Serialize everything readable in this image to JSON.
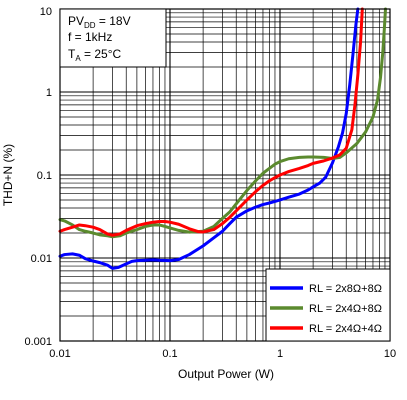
{
  "chart_data": {
    "type": "line",
    "x_scale": "log",
    "y_scale": "log",
    "xlim": [
      0.01,
      10
    ],
    "ylim": [
      0.001,
      10
    ],
    "xlabel": "Output Power (W)",
    "ylabel": "THD+N (%)",
    "x_ticks": [
      {
        "value": 0.01,
        "label": "0.01"
      },
      {
        "value": 0.1,
        "label": "0.1"
      },
      {
        "value": 1,
        "label": "1"
      },
      {
        "value": 10,
        "label": "10"
      }
    ],
    "y_ticks": [
      {
        "value": 0.001,
        "label": "0.001"
      },
      {
        "value": 0.01,
        "label": "0.01"
      },
      {
        "value": 0.1,
        "label": "0.1"
      },
      {
        "value": 1,
        "label": "1"
      },
      {
        "value": 10,
        "label": "10"
      }
    ],
    "grid": true,
    "conditions": {
      "line1": {
        "main": "PV",
        "sub": "DD",
        "rest": " = 18V"
      },
      "line2": {
        "main": "f = 1kHz"
      },
      "line3": {
        "main": "T",
        "sub": "A",
        "rest": " = 25°C"
      }
    },
    "legend_position": "bottom-right",
    "series": [
      {
        "name": "RL = 2x8Ω+8Ω",
        "color": "#0000ff",
        "points": [
          [
            0.01,
            0.0105
          ],
          [
            0.011,
            0.011
          ],
          [
            0.013,
            0.0112
          ],
          [
            0.015,
            0.0108
          ],
          [
            0.017,
            0.0098
          ],
          [
            0.02,
            0.0092
          ],
          [
            0.023,
            0.0088
          ],
          [
            0.027,
            0.0082
          ],
          [
            0.03,
            0.0075
          ],
          [
            0.034,
            0.0077
          ],
          [
            0.04,
            0.0085
          ],
          [
            0.045,
            0.0091
          ],
          [
            0.05,
            0.0093
          ],
          [
            0.06,
            0.0094
          ],
          [
            0.07,
            0.0095
          ],
          [
            0.08,
            0.0094
          ],
          [
            0.1,
            0.0093
          ],
          [
            0.12,
            0.0096
          ],
          [
            0.15,
            0.011
          ],
          [
            0.2,
            0.014
          ],
          [
            0.25,
            0.0175
          ],
          [
            0.3,
            0.021
          ],
          [
            0.35,
            0.026
          ],
          [
            0.4,
            0.031
          ],
          [
            0.5,
            0.037
          ],
          [
            0.6,
            0.041
          ],
          [
            0.7,
            0.044
          ],
          [
            0.8,
            0.046
          ],
          [
            0.9,
            0.048
          ],
          [
            1,
            0.05
          ],
          [
            1.2,
            0.054
          ],
          [
            1.5,
            0.059
          ],
          [
            1.8,
            0.066
          ],
          [
            2,
            0.072
          ],
          [
            2.3,
            0.08
          ],
          [
            2.6,
            0.094
          ],
          [
            3,
            0.14
          ],
          [
            3.4,
            0.22
          ],
          [
            3.7,
            0.32
          ],
          [
            4,
            0.55
          ],
          [
            4.3,
            1.2
          ],
          [
            4.6,
            2.8
          ],
          [
            4.9,
            6.5
          ],
          [
            5.1,
            10
          ]
        ]
      },
      {
        "name": "RL = 2x4Ω+8Ω",
        "color": "#5b8a2e",
        "points": [
          [
            0.01,
            0.029
          ],
          [
            0.011,
            0.028
          ],
          [
            0.013,
            0.025
          ],
          [
            0.015,
            0.022
          ],
          [
            0.017,
            0.021
          ],
          [
            0.02,
            0.02
          ],
          [
            0.023,
            0.019
          ],
          [
            0.027,
            0.0185
          ],
          [
            0.03,
            0.018
          ],
          [
            0.035,
            0.0185
          ],
          [
            0.04,
            0.02
          ],
          [
            0.05,
            0.022
          ],
          [
            0.06,
            0.024
          ],
          [
            0.07,
            0.025
          ],
          [
            0.08,
            0.025
          ],
          [
            0.09,
            0.024
          ],
          [
            0.1,
            0.023
          ],
          [
            0.12,
            0.0215
          ],
          [
            0.15,
            0.0205
          ],
          [
            0.2,
            0.021
          ],
          [
            0.25,
            0.024
          ],
          [
            0.3,
            0.03
          ],
          [
            0.35,
            0.036
          ],
          [
            0.4,
            0.045
          ],
          [
            0.5,
            0.065
          ],
          [
            0.6,
            0.085
          ],
          [
            0.7,
            0.105
          ],
          [
            0.8,
            0.12
          ],
          [
            0.9,
            0.135
          ],
          [
            1,
            0.145
          ],
          [
            1.2,
            0.157
          ],
          [
            1.5,
            0.163
          ],
          [
            1.8,
            0.165
          ],
          [
            2,
            0.165
          ],
          [
            2.5,
            0.163
          ],
          [
            3,
            0.158
          ],
          [
            3.5,
            0.163
          ],
          [
            4,
            0.185
          ],
          [
            5,
            0.24
          ],
          [
            6,
            0.33
          ],
          [
            7,
            0.5
          ],
          [
            7.7,
            0.8
          ],
          [
            8.2,
            1.5
          ],
          [
            8.6,
            3
          ],
          [
            8.9,
            6
          ],
          [
            9.1,
            10
          ]
        ]
      },
      {
        "name": "RL = 2x4Ω+4Ω",
        "color": "#ff0000",
        "points": [
          [
            0.01,
            0.021
          ],
          [
            0.011,
            0.022
          ],
          [
            0.013,
            0.0235
          ],
          [
            0.015,
            0.025
          ],
          [
            0.017,
            0.0245
          ],
          [
            0.02,
            0.0235
          ],
          [
            0.023,
            0.022
          ],
          [
            0.027,
            0.0195
          ],
          [
            0.03,
            0.0188
          ],
          [
            0.035,
            0.0195
          ],
          [
            0.04,
            0.0215
          ],
          [
            0.05,
            0.0245
          ],
          [
            0.06,
            0.026
          ],
          [
            0.07,
            0.027
          ],
          [
            0.08,
            0.0275
          ],
          [
            0.09,
            0.0275
          ],
          [
            0.1,
            0.027
          ],
          [
            0.12,
            0.0255
          ],
          [
            0.15,
            0.0225
          ],
          [
            0.18,
            0.0208
          ],
          [
            0.2,
            0.0206
          ],
          [
            0.25,
            0.022
          ],
          [
            0.3,
            0.026
          ],
          [
            0.35,
            0.031
          ],
          [
            0.4,
            0.037
          ],
          [
            0.5,
            0.05
          ],
          [
            0.6,
            0.063
          ],
          [
            0.7,
            0.075
          ],
          [
            0.8,
            0.085
          ],
          [
            0.9,
            0.093
          ],
          [
            1,
            0.1
          ],
          [
            1.2,
            0.11
          ],
          [
            1.5,
            0.12
          ],
          [
            1.8,
            0.13
          ],
          [
            2,
            0.138
          ],
          [
            2.5,
            0.148
          ],
          [
            3,
            0.16
          ],
          [
            3.5,
            0.175
          ],
          [
            4,
            0.21
          ],
          [
            4.5,
            0.35
          ],
          [
            4.8,
            0.7
          ],
          [
            5.1,
            1.6
          ],
          [
            5.4,
            4
          ],
          [
            5.6,
            10
          ]
        ]
      }
    ]
  }
}
